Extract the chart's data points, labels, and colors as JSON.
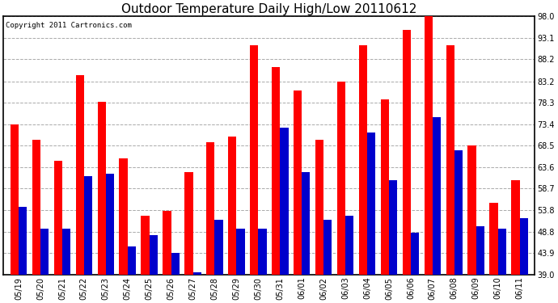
{
  "title": "Outdoor Temperature Daily High/Low 20110612",
  "copyright": "Copyright 2011 Cartronics.com",
  "dates": [
    "05/19",
    "05/20",
    "05/21",
    "05/22",
    "05/23",
    "05/24",
    "05/25",
    "05/26",
    "05/27",
    "05/28",
    "05/29",
    "05/30",
    "05/31",
    "06/01",
    "06/02",
    "06/03",
    "06/04",
    "06/05",
    "06/06",
    "06/07",
    "06/08",
    "06/09",
    "06/10",
    "06/11"
  ],
  "highs": [
    73.4,
    69.8,
    65.0,
    84.5,
    78.5,
    65.5,
    52.5,
    53.5,
    62.5,
    69.3,
    70.5,
    91.5,
    86.5,
    81.0,
    69.8,
    83.2,
    91.5,
    79.0,
    95.0,
    98.0,
    91.5,
    68.5,
    55.5,
    60.5
  ],
  "lows": [
    54.5,
    49.5,
    49.5,
    61.5,
    62.0,
    45.5,
    48.0,
    44.0,
    39.5,
    51.5,
    49.5,
    49.5,
    72.5,
    62.5,
    51.5,
    52.5,
    71.5,
    60.5,
    48.5,
    75.0,
    67.5,
    50.0,
    49.5,
    52.0
  ],
  "high_color": "#ff0000",
  "low_color": "#0000cc",
  "bg_color": "#ffffff",
  "grid_color": "#aaaaaa",
  "yticks": [
    39.0,
    43.9,
    48.8,
    53.8,
    58.7,
    63.6,
    68.5,
    73.4,
    78.3,
    83.2,
    88.2,
    93.1,
    98.0
  ],
  "ymin": 39.0,
  "ymax": 98.0,
  "title_fontsize": 11,
  "copyright_fontsize": 6.5,
  "tick_fontsize": 7,
  "bar_width": 0.38
}
